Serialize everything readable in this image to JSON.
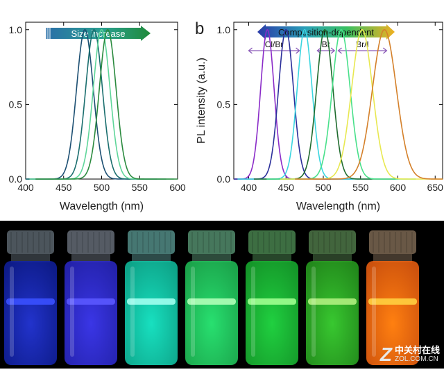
{
  "chart_data": [
    {
      "type": "line",
      "panel_label": "",
      "xlabel": "Wavelength (nm)",
      "ylabel": "",
      "xlim": [
        400,
        600
      ],
      "ylim": [
        0,
        1.05
      ],
      "xticks": [
        400,
        450,
        500,
        550,
        600
      ],
      "yticks": [
        "0.0",
        "0.5",
        "1.0"
      ],
      "banner": {
        "text": "Size increase",
        "direction": "right"
      },
      "series": [
        {
          "peak": 478,
          "sigma": 11,
          "amplitude": 1.0,
          "color": "#1c4f72"
        },
        {
          "peak": 490,
          "sigma": 11,
          "amplitude": 1.0,
          "color": "#1a6e6e"
        },
        {
          "peak": 500,
          "sigma": 11,
          "amplitude": 1.0,
          "color": "#5fd69a"
        },
        {
          "peak": 508,
          "sigma": 11,
          "amplitude": 1.0,
          "color": "#2a8a3e"
        }
      ]
    },
    {
      "type": "line",
      "panel_label": "b",
      "xlabel": "Wavelength (nm)",
      "ylabel": "PL intensity (a.u.)",
      "xlim": [
        380,
        660
      ],
      "ylim": [
        0,
        1.05
      ],
      "xticks": [
        400,
        450,
        500,
        550,
        600,
        650
      ],
      "yticks": [
        "0.0",
        "0.5",
        "1.0"
      ],
      "banner": {
        "text": "Composition-dependent",
        "direction": "both"
      },
      "groups": [
        {
          "label": "Cl/Br",
          "from": 400,
          "to": 468
        },
        {
          "label": "Br",
          "from": 492,
          "to": 515
        },
        {
          "label": "Br/I",
          "from": 520,
          "to": 585
        }
      ],
      "series": [
        {
          "peak": 425,
          "sigma": 9,
          "amplitude": 1.0,
          "color": "#8a2bc8"
        },
        {
          "peak": 450,
          "sigma": 10,
          "amplitude": 1.0,
          "color": "#2b2f9a"
        },
        {
          "peak": 475,
          "sigma": 10,
          "amplitude": 1.0,
          "color": "#3ad6e0"
        },
        {
          "peak": 502,
          "sigma": 11,
          "amplitude": 1.0,
          "color": "#1f6b2e"
        },
        {
          "peak": 524,
          "sigma": 12,
          "amplitude": 1.0,
          "color": "#48e08a"
        },
        {
          "peak": 552,
          "sigma": 14,
          "amplitude": 1.0,
          "color": "#e8e850"
        },
        {
          "peak": 582,
          "sigma": 16,
          "amplitude": 1.0,
          "color": "#d4802a"
        }
      ]
    }
  ],
  "photo": {
    "vials": [
      {
        "glow": "#2233cc",
        "liquid": "#1020a0",
        "band": "#3a50ff",
        "cap": "#8a9aa8"
      },
      {
        "glow": "#3a36e6",
        "liquid": "#2a28c8",
        "band": "#5a58ff",
        "cap": "#9aa6b6"
      },
      {
        "glow": "#18e0c0",
        "liquid": "#10c0a0",
        "band": "#a0fff0",
        "cap": "#80d8d0"
      },
      {
        "glow": "#28e070",
        "liquid": "#20c058",
        "band": "#b0ffb8",
        "cap": "#80d8a8"
      },
      {
        "glow": "#20d040",
        "liquid": "#18b030",
        "band": "#a0ff90",
        "cap": "#70c878"
      },
      {
        "glow": "#38c830",
        "liquid": "#28a020",
        "band": "#b0f080",
        "cap": "#78b870"
      },
      {
        "glow": "#ff8010",
        "liquid": "#f06010",
        "band": "#ffd040",
        "cap": "#c0a080"
      }
    ]
  },
  "watermark": {
    "logo": "Z",
    "cn": "中关村在线",
    "en": "ZOL.COM.CN"
  }
}
